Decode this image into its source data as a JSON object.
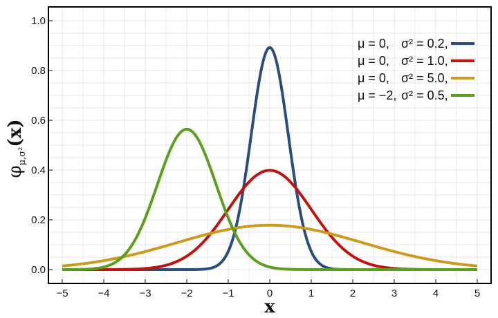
{
  "chart_data": {
    "type": "line",
    "title": "",
    "xlabel": "x",
    "ylabel": {
      "symbol": "φ",
      "subscript": "μ,σ²",
      "suffix": "(x)"
    },
    "xlim": [
      -5,
      5
    ],
    "ylim": [
      0,
      1.0
    ],
    "x_ticks": [
      "−5",
      "−4",
      "−3",
      "−2",
      "−1",
      "0",
      "1",
      "2",
      "3",
      "4",
      "5"
    ],
    "y_ticks": [
      "0.0",
      "0.2",
      "0.4",
      "0.6",
      "0.8",
      "1.0"
    ],
    "grid": true,
    "legend_position": "top-right",
    "series": [
      {
        "mu_label": "μ = 0,",
        "sigma_label": "σ² = 0.2,",
        "mu": 0,
        "variance": 0.2,
        "color": "#2a4d80"
      },
      {
        "mu_label": "μ = 0,",
        "sigma_label": "σ² = 1.0,",
        "mu": 0,
        "variance": 1.0,
        "color": "#c0120f"
      },
      {
        "mu_label": "μ = 0,",
        "sigma_label": "σ² = 5.0,",
        "mu": 0,
        "variance": 5.0,
        "color": "#cc9a1c"
      },
      {
        "mu_label": "μ = −2,",
        "sigma_label": "σ² = 0.5,",
        "mu": -2,
        "variance": 0.5,
        "color": "#5aa01e"
      }
    ]
  }
}
